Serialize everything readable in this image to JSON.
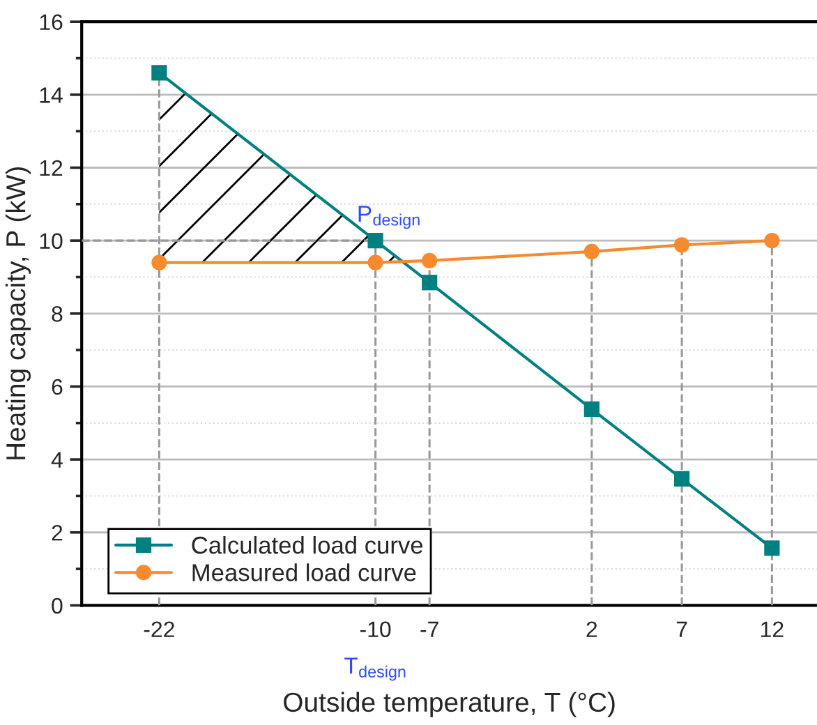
{
  "chart_data": {
    "type": "line",
    "xlabel": "Outside temperature, T (°C)",
    "ylabel": "Heating capacity, P (kW)",
    "x": [
      -22,
      -10,
      -7,
      2,
      7,
      12
    ],
    "series": [
      {
        "name": "Calculated load curve",
        "color": "#008080",
        "marker": "square",
        "values": [
          14.6,
          10.0,
          8.85,
          5.38,
          3.47,
          1.57
        ]
      },
      {
        "name": "Measured load curve",
        "color": "#f58a2e",
        "marker": "circle",
        "values": [
          9.4,
          9.4,
          9.45,
          9.7,
          9.88,
          10.0
        ]
      }
    ],
    "xlim": [
      -26.3,
      14.5
    ],
    "xticks": [
      -22,
      -10,
      -7,
      2,
      7,
      12
    ],
    "ylim": [
      0,
      16
    ],
    "yticks": [
      0,
      2,
      4,
      6,
      8,
      10,
      12,
      14,
      16
    ],
    "ref_lines": [
      {
        "axis": "x",
        "value": -22,
        "color": "#999999",
        "line_style": "dashed"
      },
      {
        "axis": "x",
        "value": -10,
        "color": "#999999",
        "line_style": "dashed"
      },
      {
        "axis": "x",
        "value": -7,
        "color": "#999999",
        "line_style": "dashed"
      },
      {
        "axis": "x",
        "value": 2,
        "color": "#999999",
        "line_style": "dashed"
      },
      {
        "axis": "x",
        "value": 7,
        "color": "#999999",
        "line_style": "dashed"
      },
      {
        "axis": "x",
        "value": 12,
        "color": "#999999",
        "line_style": "dashed"
      },
      {
        "axis": "y",
        "value": 10,
        "color": "#999999",
        "line_style": "dashed"
      }
    ],
    "annotations": [
      {
        "text": "P$_{design}$",
        "x": -10,
        "y": 10
      },
      {
        "text": "T$_{design}$",
        "x": -10,
        "y": 0
      }
    ],
    "grid": "y",
    "legend": "bottom left",
    "line_style": "solid"
  }
}
